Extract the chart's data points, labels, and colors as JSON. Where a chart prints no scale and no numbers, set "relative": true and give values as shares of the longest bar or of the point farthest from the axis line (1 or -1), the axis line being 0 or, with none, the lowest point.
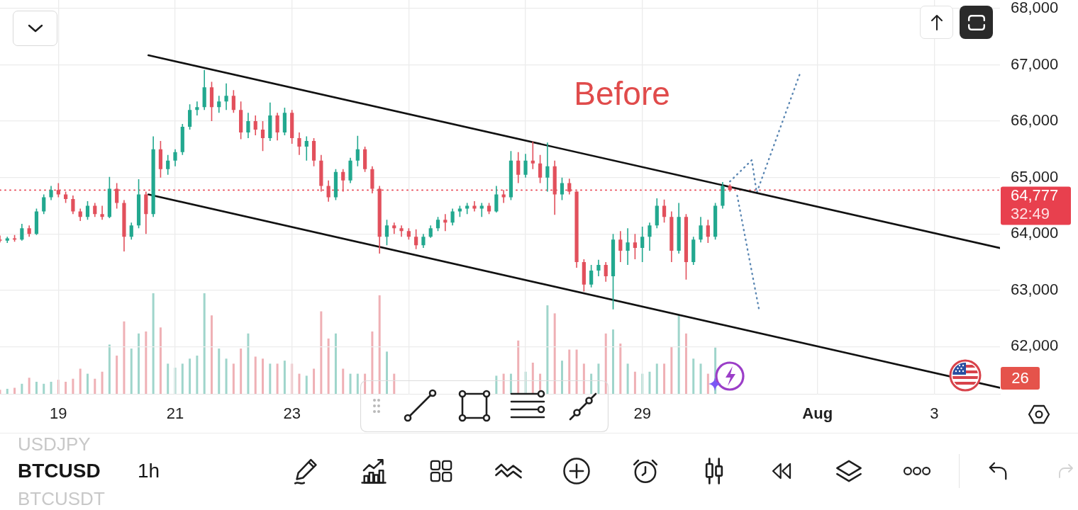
{
  "chart_data": [
    {
      "type": "candlestick",
      "title": "BTCUSD",
      "subtitle": "1h",
      "x": [
        "--07-18T00:00",
        "--07-18T03:00",
        "--07-18T06:00",
        "--07-18T09:00",
        "--07-18T12:00",
        "--07-18T15:00",
        "--07-18T18:00",
        "--07-18T21:00",
        "--07-19T00:00",
        "--07-19T03:00",
        "--07-19T06:00",
        "--07-19T09:00",
        "--07-19T12:00",
        "--07-19T15:00",
        "--07-19T18:00",
        "--07-19T21:00",
        "--07-20T00:00",
        "--07-20T03:00",
        "--07-20T06:00",
        "--07-20T09:00",
        "--07-20T12:00",
        "--07-20T15:00",
        "--07-20T18:00",
        "--07-20T21:00",
        "--07-21T00:00",
        "--07-21T03:00",
        "--07-21T06:00",
        "--07-21T09:00",
        "--07-21T12:00",
        "--07-21T15:00",
        "--07-21T18:00",
        "--07-21T21:00",
        "--07-22T00:00",
        "--07-22T03:00",
        "--07-22T06:00",
        "--07-22T09:00",
        "--07-22T12:00",
        "--07-22T15:00",
        "--07-22T18:00",
        "--07-22T21:00",
        "--07-23T00:00",
        "--07-23T03:00",
        "--07-23T06:00",
        "--07-23T09:00",
        "--07-23T12:00",
        "--07-23T15:00",
        "--07-23T18:00",
        "--07-23T21:00",
        "--07-24T00:00",
        "--07-24T03:00",
        "--07-24T06:00",
        "--07-24T09:00",
        "--07-24T12:00",
        "--07-24T15:00",
        "--07-24T18:00",
        "--07-24T21:00",
        "--07-25T00:00",
        "--07-25T03:00",
        "--07-25T06:00",
        "--07-25T09:00",
        "--07-25T12:00",
        "--07-25T15:00",
        "--07-25T18:00",
        "--07-25T21:00",
        "--07-26T00:00",
        "--07-26T03:00",
        "--07-26T06:00",
        "--07-26T09:00",
        "--07-26T12:00",
        "--07-26T15:00",
        "--07-26T18:00",
        "--07-26T21:00",
        "--07-27T00:00",
        "--07-27T03:00",
        "--07-27T06:00",
        "--07-27T09:00",
        "--07-27T12:00",
        "--07-27T15:00",
        "--07-27T18:00",
        "--07-27T21:00",
        "--07-28T00:00",
        "--07-28T03:00",
        "--07-28T06:00",
        "--07-28T09:00",
        "--07-28T12:00",
        "--07-28T15:00",
        "--07-28T18:00",
        "--07-28T21:00",
        "--07-29T00:00",
        "--07-29T03:00",
        "--07-29T06:00",
        "--07-29T09:00",
        "--07-29T12:00",
        "--07-29T15:00",
        "--07-29T18:00",
        "--07-29T21:00",
        "--07-30T00:00",
        "--07-30T03:00",
        "--07-30T06:00",
        "--07-30T09:00",
        "--07-30T12:00"
      ],
      "ohlc": [
        [
          63900,
          63970,
          63850,
          63880
        ],
        [
          63880,
          63950,
          63840,
          63920
        ],
        [
          63920,
          63980,
          63860,
          63900
        ],
        [
          63900,
          64180,
          63880,
          64100
        ],
        [
          64100,
          64150,
          63950,
          64000
        ],
        [
          64000,
          64450,
          63980,
          64400
        ],
        [
          64400,
          64700,
          64350,
          64650
        ],
        [
          64650,
          64850,
          64600,
          64780
        ],
        [
          64780,
          64900,
          64650,
          64700
        ],
        [
          64700,
          64750,
          64550,
          64620
        ],
        [
          64620,
          64680,
          64350,
          64400
        ],
        [
          64400,
          64450,
          64230,
          64300
        ],
        [
          64300,
          64580,
          64250,
          64500
        ],
        [
          64500,
          64550,
          64300,
          64350
        ],
        [
          64350,
          64500,
          64250,
          64300
        ],
        [
          64300,
          65010,
          64280,
          64800
        ],
        [
          64800,
          64900,
          64450,
          64550
        ],
        [
          64550,
          64600,
          63690,
          63950
        ],
        [
          63950,
          64200,
          63900,
          64150
        ],
        [
          64150,
          64970,
          64100,
          64700
        ],
        [
          64700,
          64750,
          64000,
          64350
        ],
        [
          64350,
          65730,
          64300,
          65500
        ],
        [
          65500,
          65650,
          65000,
          65150
        ],
        [
          65150,
          65400,
          65050,
          65300
        ],
        [
          65300,
          65500,
          65200,
          65450
        ],
        [
          65450,
          65950,
          65400,
          65900
        ],
        [
          65900,
          66300,
          65850,
          66200
        ],
        [
          66200,
          66350,
          66100,
          66250
        ],
        [
          66250,
          66910,
          66200,
          66600
        ],
        [
          66600,
          66700,
          66000,
          66250
        ],
        [
          66250,
          66450,
          66150,
          66350
        ],
        [
          66350,
          66670,
          66200,
          66450
        ],
        [
          66450,
          66550,
          66150,
          66200
        ],
        [
          66200,
          66350,
          65680,
          65800
        ],
        [
          65800,
          66150,
          65700,
          66000
        ],
        [
          66000,
          66100,
          65750,
          65850
        ],
        [
          65850,
          66000,
          65470,
          65700
        ],
        [
          65700,
          66330,
          65650,
          66100
        ],
        [
          66100,
          66150,
          65660,
          65800
        ],
        [
          65800,
          66240,
          65750,
          66150
        ],
        [
          66150,
          66200,
          65600,
          65700
        ],
        [
          65700,
          65800,
          65400,
          65550
        ],
        [
          65550,
          65730,
          65300,
          65650
        ],
        [
          65650,
          65700,
          65200,
          65300
        ],
        [
          65300,
          65400,
          64750,
          64850
        ],
        [
          64850,
          64950,
          64570,
          64650
        ],
        [
          64650,
          65150,
          64600,
          65100
        ],
        [
          65100,
          65150,
          64750,
          64950
        ],
        [
          64950,
          65350,
          64900,
          65300
        ],
        [
          65300,
          65740,
          65200,
          65500
        ],
        [
          65500,
          65550,
          65100,
          65150
        ],
        [
          65150,
          65200,
          64720,
          64800
        ],
        [
          64800,
          64850,
          63650,
          63950
        ],
        [
          63950,
          64250,
          63800,
          64150
        ],
        [
          64150,
          64200,
          64000,
          64100
        ],
        [
          64100,
          64150,
          63950,
          64050
        ],
        [
          64050,
          64100,
          63900,
          63950
        ],
        [
          63950,
          64080,
          63730,
          63800
        ],
        [
          63800,
          64000,
          63750,
          63950
        ],
        [
          63950,
          64150,
          63930,
          64100
        ],
        [
          64100,
          64300,
          64050,
          64250
        ],
        [
          64250,
          64350,
          64050,
          64200
        ],
        [
          64200,
          64450,
          64150,
          64400
        ],
        [
          64400,
          64500,
          64300,
          64450
        ],
        [
          64450,
          64550,
          64350,
          64500
        ],
        [
          64500,
          64580,
          64400,
          64450
        ],
        [
          64450,
          64550,
          64300,
          64500
        ],
        [
          64500,
          64550,
          64350,
          64400
        ],
        [
          64400,
          64850,
          64380,
          64700
        ],
        [
          64700,
          64780,
          64550,
          64650
        ],
        [
          64650,
          65470,
          64600,
          65300
        ],
        [
          65300,
          65450,
          64900,
          65050
        ],
        [
          65050,
          65420,
          65000,
          65300
        ],
        [
          65300,
          65640,
          65150,
          65250
        ],
        [
          65250,
          65400,
          64900,
          65000
        ],
        [
          65000,
          65620,
          64750,
          65200
        ],
        [
          65200,
          65300,
          64340,
          64700
        ],
        [
          64700,
          65000,
          64600,
          64900
        ],
        [
          64900,
          64980,
          64700,
          64750
        ],
        [
          64750,
          64760,
          63400,
          63500
        ],
        [
          63500,
          63550,
          62980,
          63100
        ],
        [
          63100,
          63450,
          63050,
          63350
        ],
        [
          63350,
          63540,
          63250,
          63450
        ],
        [
          63450,
          63500,
          63150,
          63250
        ],
        [
          63250,
          64000,
          62660,
          63900
        ],
        [
          63900,
          64050,
          63500,
          63700
        ],
        [
          63700,
          64100,
          63450,
          63850
        ],
        [
          63850,
          64000,
          63550,
          63750
        ],
        [
          63750,
          64130,
          63500,
          63950
        ],
        [
          63950,
          64200,
          63700,
          64150
        ],
        [
          64150,
          64630,
          64100,
          64500
        ],
        [
          64500,
          64610,
          64200,
          64300
        ],
        [
          64300,
          64400,
          63500,
          63700
        ],
        [
          63700,
          64550,
          63650,
          64300
        ],
        [
          64300,
          64350,
          63190,
          63500
        ],
        [
          63500,
          63950,
          63450,
          63900
        ],
        [
          63900,
          64300,
          63850,
          64150
        ],
        [
          64150,
          64250,
          63840,
          63950
        ],
        [
          63950,
          64550,
          63900,
          64500
        ],
        [
          64500,
          64920,
          64450,
          64850
        ],
        [
          64850,
          64880,
          64750,
          64777
        ]
      ],
      "colors": [
        "#e2505c",
        "#22a88f",
        "#e2505c",
        "#22a88f",
        "#e2505c",
        "#22a88f",
        "#22a88f",
        "#22a88f",
        "#e2505c",
        "#e2505c",
        "#e2505c",
        "#e2505c",
        "#22a88f",
        "#e2505c",
        "#e2505c",
        "#22a88f",
        "#e2505c",
        "#e2505c",
        "#22a88f",
        "#22a88f",
        "#e2505c",
        "#22a88f",
        "#e2505c",
        "#22a88f",
        "#22a88f",
        "#22a88f",
        "#22a88f",
        "#22a88f",
        "#22a88f",
        "#e2505c",
        "#22a88f",
        "#22a88f",
        "#e2505c",
        "#e2505c",
        "#22a88f",
        "#e2505c",
        "#e2505c",
        "#22a88f",
        "#e2505c",
        "#22a88f",
        "#e2505c",
        "#e2505c",
        "#22a88f",
        "#e2505c",
        "#e2505c",
        "#e2505c",
        "#22a88f",
        "#e2505c",
        "#22a88f",
        "#22a88f",
        "#e2505c",
        "#e2505c",
        "#e2505c",
        "#22a88f",
        "#e2505c",
        "#e2505c",
        "#e2505c",
        "#e2505c",
        "#22a88f",
        "#22a88f",
        "#22a88f",
        "#e2505c",
        "#22a88f",
        "#22a88f",
        "#22a88f",
        "#e2505c",
        "#22a88f",
        "#e2505c",
        "#22a88f",
        "#e2505c",
        "#22a88f",
        "#e2505c",
        "#22a88f",
        "#e2505c",
        "#e2505c",
        "#22a88f",
        "#e2505c",
        "#22a88f",
        "#e2505c",
        "#e2505c",
        "#e2505c",
        "#22a88f",
        "#22a88f",
        "#e2505c",
        "#22a88f",
        "#e2505c",
        "#22a88f",
        "#e2505c",
        "#22a88f",
        "#22a88f",
        "#22a88f",
        "#e2505c",
        "#e2505c",
        "#22a88f",
        "#e2505c",
        "#22a88f",
        "#22a88f",
        "#e2505c",
        "#22a88f",
        "#22a88f",
        "#e2505c"
      ],
      "series": [
        {
          "type": "line",
          "color": "#111111",
          "x": [
            "--07-20T13:00",
            "--08-04T03:00"
          ],
          "values": [
            67170,
            63750
          ]
        },
        {
          "type": "line",
          "color": "#111111",
          "x": [
            "--07-20T13:00",
            "--08-04T03:00"
          ],
          "values": [
            64700,
            61270
          ]
        },
        {
          "type": "line",
          "color": "#5b87b3",
          "line_style": "dotted",
          "x": [
            "--07-30T12:00",
            "--07-30T21:00",
            "--07-30T23:00",
            "--07-31T17:00"
          ],
          "values": [
            64930,
            65310,
            64730,
            66870
          ]
        },
        {
          "type": "line",
          "color": "#5b87b3",
          "line_style": "dotted",
          "x": [
            "--07-30T15:00",
            "--07-31T00:00"
          ],
          "values": [
            64680,
            62650
          ]
        }
      ],
      "xlim": [
        "--07-18T00:00",
        "--08-04T03:00"
      ],
      "xticks": [
        {
          "value": "--07-19",
          "label": "19"
        },
        {
          "value": "--07-21",
          "label": "21"
        },
        {
          "value": "--07-23",
          "label": "23"
        },
        {
          "value": "--07-25",
          "label": null
        },
        {
          "value": "--07-27",
          "label": null
        },
        {
          "value": "--07-29",
          "label": "29"
        },
        {
          "value": "--08-01",
          "label": "Aug"
        },
        {
          "value": "--08-03",
          "label": "3"
        }
      ],
      "ylim": [
        61150,
        68150
      ],
      "yticks": [
        {
          "value": 62000,
          "label": "62,000"
        },
        {
          "value": 63000,
          "label": "63,000"
        },
        {
          "value": 64000,
          "label": "64,000"
        },
        {
          "value": 65000,
          "label": "65,000"
        },
        {
          "value": 66000,
          "label": "66,000"
        },
        {
          "value": 67000,
          "label": "67,000"
        },
        {
          "value": 68000,
          "label": "68,000"
        }
      ],
      "grid": true,
      "marker": "none",
      "ref_lines": [
        {
          "axis": "y",
          "value": 64777,
          "label": "64,777",
          "color": "#e8404e",
          "line_style": "dotted"
        }
      ],
      "annotations": [
        "Before",
        "32:49",
        "USDJPY",
        "BTCUSDT",
        "26"
      ]
    },
    {
      "type": "bar",
      "relative": true,
      "tick_labels": false,
      "x": [
        "--07-18T00:00",
        "--07-18T03:00",
        "--07-18T06:00",
        "--07-18T09:00",
        "--07-18T12:00",
        "--07-18T15:00",
        "--07-18T18:00",
        "--07-18T21:00",
        "--07-19T00:00",
        "--07-19T03:00",
        "--07-19T06:00",
        "--07-19T09:00",
        "--07-19T12:00",
        "--07-19T15:00",
        "--07-19T18:00",
        "--07-19T21:00",
        "--07-20T00:00",
        "--07-20T03:00",
        "--07-20T06:00",
        "--07-20T09:00",
        "--07-20T12:00",
        "--07-20T15:00",
        "--07-20T18:00",
        "--07-20T21:00",
        "--07-21T00:00",
        "--07-21T03:00",
        "--07-21T06:00",
        "--07-21T09:00",
        "--07-21T12:00",
        "--07-21T15:00",
        "--07-21T18:00",
        "--07-21T21:00",
        "--07-22T00:00",
        "--07-22T03:00",
        "--07-22T06:00",
        "--07-22T09:00",
        "--07-22T12:00",
        "--07-22T15:00",
        "--07-22T18:00",
        "--07-22T21:00",
        "--07-23T00:00",
        "--07-23T03:00",
        "--07-23T06:00",
        "--07-23T09:00",
        "--07-23T12:00",
        "--07-23T15:00",
        "--07-23T18:00",
        "--07-23T21:00",
        "--07-24T00:00",
        "--07-24T03:00",
        "--07-24T06:00",
        "--07-24T09:00",
        "--07-24T12:00",
        "--07-24T15:00",
        "--07-24T18:00",
        "--07-24T21:00",
        "--07-25T00:00",
        "--07-25T03:00",
        "--07-25T06:00",
        "--07-25T09:00",
        "--07-25T12:00",
        "--07-25T15:00",
        "--07-25T18:00",
        "--07-25T21:00",
        "--07-26T00:00",
        "--07-26T03:00",
        "--07-26T06:00",
        "--07-26T09:00",
        "--07-26T12:00",
        "--07-26T15:00",
        "--07-26T18:00",
        "--07-26T21:00",
        "--07-27T00:00",
        "--07-27T03:00",
        "--07-27T06:00",
        "--07-27T09:00",
        "--07-27T12:00",
        "--07-27T15:00",
        "--07-27T18:00",
        "--07-27T21:00",
        "--07-28T00:00",
        "--07-28T03:00",
        "--07-28T06:00",
        "--07-28T09:00",
        "--07-28T12:00",
        "--07-28T15:00",
        "--07-28T18:00",
        "--07-28T21:00",
        "--07-29T00:00",
        "--07-29T03:00",
        "--07-29T06:00",
        "--07-29T09:00",
        "--07-29T12:00",
        "--07-29T15:00",
        "--07-29T18:00",
        "--07-29T21:00",
        "--07-30T00:00",
        "--07-30T03:00",
        "--07-30T06:00"
      ],
      "values": [
        0.04,
        0.05,
        0.06,
        0.1,
        0.16,
        0.12,
        0.1,
        0.12,
        0.14,
        0.12,
        0.15,
        0.25,
        0.2,
        0.15,
        0.22,
        0.49,
        0.38,
        0.72,
        0.45,
        0.6,
        0.62,
        1,
        0.66,
        0.3,
        0.26,
        0.3,
        0.35,
        0.38,
        1,
        0.78,
        0.45,
        0.35,
        0.3,
        0.45,
        0.6,
        0.37,
        0.35,
        0.3,
        0.3,
        0.33,
        0.3,
        0.2,
        0.18,
        0.25,
        0.82,
        0.55,
        0.6,
        0.25,
        0.2,
        0.2,
        0.2,
        0.62,
        0.98,
        0.42,
        0.2,
        null,
        null,
        null,
        null,
        null,
        null,
        null,
        null,
        null,
        null,
        null,
        null,
        null,
        0.18,
        0.2,
        0.2,
        0.53,
        0.22,
        0.31,
        0.2,
        0.88,
        0.8,
        0.33,
        0.44,
        0.44,
        0.3,
        0.2,
        0.3,
        0.6,
        0.64,
        0.5,
        0.3,
        0.22,
        0.2,
        0.22,
        0.3,
        0.3,
        0.47,
        0.78,
        0.6,
        0.35,
        0.3,
        0.2,
        0.46
      ],
      "colors": [
        "#efb0b5",
        "#9fd5cb",
        "#efb0b5",
        "#9fd5cb",
        "#efb0b5",
        "#9fd5cb",
        "#9fd5cb",
        "#9fd5cb",
        "#efb0b5",
        "#efb0b5",
        "#efb0b5",
        "#efb0b5",
        "#9fd5cb",
        "#efb0b5",
        "#efb0b5",
        "#9fd5cb",
        "#efb0b5",
        "#efb0b5",
        "#9fd5cb",
        "#9fd5cb",
        "#efb0b5",
        "#9fd5cb",
        "#efb0b5",
        "#9fd5cb",
        "#9fd5cb",
        "#9fd5cb",
        "#9fd5cb",
        "#9fd5cb",
        "#9fd5cb",
        "#efb0b5",
        "#9fd5cb",
        "#9fd5cb",
        "#efb0b5",
        "#efb0b5",
        "#9fd5cb",
        "#efb0b5",
        "#efb0b5",
        "#9fd5cb",
        "#efb0b5",
        "#9fd5cb",
        "#efb0b5",
        "#efb0b5",
        "#9fd5cb",
        "#efb0b5",
        "#efb0b5",
        "#efb0b5",
        "#9fd5cb",
        "#efb0b5",
        "#9fd5cb",
        "#9fd5cb",
        "#efb0b5",
        "#efb0b5",
        "#efb0b5",
        "#9fd5cb",
        "#efb0b5",
        "#efb0b5",
        "#efb0b5",
        "#efb0b5",
        "#9fd5cb",
        "#9fd5cb",
        "#9fd5cb",
        "#efb0b5",
        "#9fd5cb",
        "#9fd5cb",
        "#9fd5cb",
        "#efb0b5",
        "#9fd5cb",
        "#efb0b5",
        "#9fd5cb",
        "#efb0b5",
        "#9fd5cb",
        "#efb0b5",
        "#9fd5cb",
        "#efb0b5",
        "#efb0b5",
        "#9fd5cb",
        "#efb0b5",
        "#9fd5cb",
        "#efb0b5",
        "#efb0b5",
        "#efb0b5",
        "#9fd5cb",
        "#9fd5cb",
        "#efb0b5",
        "#9fd5cb",
        "#efb0b5",
        "#9fd5cb",
        "#efb0b5",
        "#9fd5cb",
        "#9fd5cb",
        "#9fd5cb",
        "#efb0b5",
        "#efb0b5",
        "#9fd5cb",
        "#efb0b5",
        "#9fd5cb",
        "#9fd5cb",
        "#efb0b5",
        "#9fd5cb"
      ],
      "xlim": [
        "--07-18T00:00",
        "--08-04T03:00"
      ]
    }
  ]
}
